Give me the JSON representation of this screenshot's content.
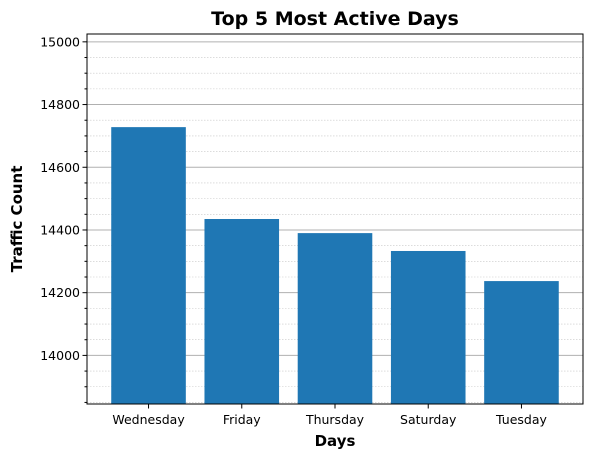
{
  "chart_data": {
    "type": "bar",
    "title": "Top 5 Most Active Days",
    "xlabel": "Days",
    "ylabel": "Traffic Count",
    "categories": [
      "Wednesday",
      "Friday",
      "Thursday",
      "Saturday",
      "Tuesday"
    ],
    "values": [
      14728,
      14435,
      14390,
      14333,
      14237
    ],
    "ylim": [
      13845,
      15025
    ],
    "yticks": [
      14000,
      14200,
      14400,
      14600,
      14800,
      15000
    ],
    "yminor_step": 50,
    "grid": "y-major-solid, y-minor-dotted",
    "bar_color": "#1f77b4"
  }
}
